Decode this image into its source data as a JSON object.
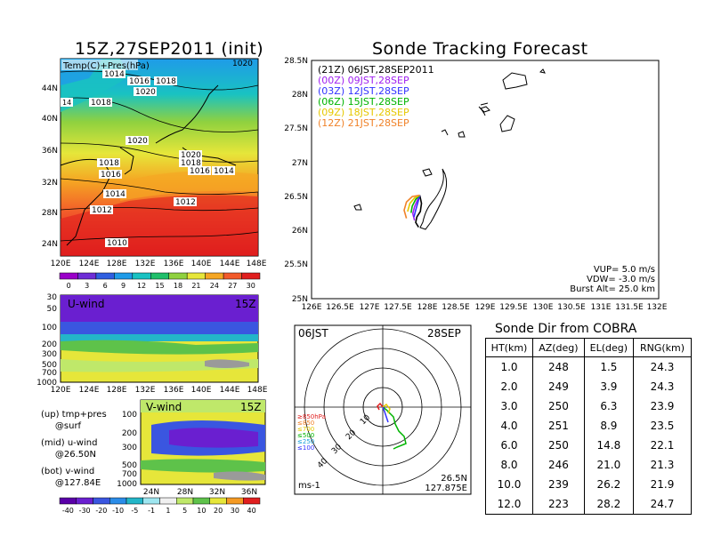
{
  "maps": {
    "temp_title": "15Z,27SEP2011 (init)",
    "temp_label": "Temp(C)+Pres(hPa)",
    "temp_time": "1020",
    "lon_ticks": [
      "120E",
      "124E",
      "128E",
      "132E",
      "136E",
      "140E",
      "144E",
      "148E"
    ],
    "lat_ticks": [
      "44N",
      "40N",
      "36N",
      "32N",
      "28N",
      "24N"
    ],
    "isobars": [
      "1014",
      "1016",
      "1018",
      "1020",
      "1018",
      "1014",
      "1020",
      "1018",
      "1016",
      "1018",
      "1016",
      "1014",
      "1020",
      "1014",
      "1012",
      "1012",
      "1010"
    ],
    "temp_cbar": [
      "0",
      "3",
      "6",
      "9",
      "12",
      "15",
      "18",
      "21",
      "24",
      "27",
      "30"
    ],
    "temp_colors": [
      "#9a00c8",
      "#6e2dd6",
      "#2f5fe0",
      "#1f9be8",
      "#19c2c2",
      "#1fbf6a",
      "#8fd13f",
      "#e6e63a",
      "#f5a623",
      "#f25a2a",
      "#e01e1e"
    ],
    "u_label": "U-wind",
    "u_time": "15Z",
    "u_pres_ticks": [
      "30",
      "50",
      "100",
      "200",
      "300",
      "500",
      "700",
      "1000"
    ],
    "v_label": "V-wind",
    "v_time": "15Z",
    "v_pres_ticks": [
      "100",
      "200",
      "300",
      "500",
      "700",
      "1000"
    ],
    "v_lat_ticks": [
      "24N",
      "28N",
      "32N",
      "36N"
    ],
    "wind_cbar": [
      "-40",
      "-30",
      "-20",
      "-10",
      "-5",
      "-1",
      "1",
      "5",
      "10",
      "20",
      "30",
      "40"
    ],
    "wind_colors": [
      "#5a00a8",
      "#6a1fd0",
      "#3a56e0",
      "#2a8ce8",
      "#23b6c8",
      "#9ee6f0",
      "#f0f0f0",
      "#bfe86a",
      "#5ec24a",
      "#e6e63a",
      "#f59a23",
      "#e01e1e"
    ],
    "legend_notes": [
      "(up) tmp+pres\n     @surf",
      "(mid) u-wind\n     @26.50N",
      "(bot) v-wind\n     @127.84E"
    ]
  },
  "tracking": {
    "title": "Sonde Tracking Forecast",
    "lat_ticks": [
      "28.5N",
      "28N",
      "27.5N",
      "27N",
      "26.5N",
      "26N",
      "25.5N",
      "25N"
    ],
    "lon_ticks": [
      "126E",
      "126.5E",
      "127E",
      "127.5E",
      "128E",
      "128.5E",
      "129E",
      "129.5E",
      "130E",
      "130.5E",
      "131E",
      "131.5E",
      "132E"
    ],
    "items": [
      {
        "label": "(21Z) 06JST,28SEP2011",
        "color": "#000000"
      },
      {
        "label": "(00Z) 09JST,28SEP",
        "color": "#a020f0"
      },
      {
        "label": "(03Z) 12JST,28SEP",
        "color": "#3232ff"
      },
      {
        "label": "(06Z) 15JST,28SEP",
        "color": "#00b400"
      },
      {
        "label": "(09Z) 18JST,28SEP",
        "color": "#e6c800"
      },
      {
        "label": "(12Z) 21JST,28SEP",
        "color": "#f08228"
      }
    ],
    "vup": "VUP= 5.0 m/s",
    "vdw": "VDW= -3.0 m/s",
    "burst": "Burst Alt= 25.0 km"
  },
  "polar": {
    "time": "06JST",
    "date": "28SEP",
    "ring_labels": [
      "10",
      "20",
      "30",
      "40"
    ],
    "heights": [
      {
        "label": "≥850hPa",
        "color": "#e01e1e"
      },
      {
        "label": "≤850",
        "color": "#f08228"
      },
      {
        "label": "≤700",
        "color": "#e6c800"
      },
      {
        "label": "≤500",
        "color": "#00b400"
      },
      {
        "label": "≤250",
        "color": "#19a0dc"
      },
      {
        "label": "≤100",
        "color": "#3232ff"
      }
    ],
    "unit": "ms-1",
    "lat": "26.5N",
    "lon": "127.875E"
  },
  "table": {
    "title": "Sonde Dir from COBRA",
    "headers": [
      "HT(km)",
      "AZ(deg)",
      "EL(deg)",
      "RNG(km)"
    ],
    "rows": [
      [
        "1.0",
        "248",
        "1.5",
        "24.3"
      ],
      [
        "2.0",
        "249",
        "3.9",
        "24.3"
      ],
      [
        "3.0",
        "250",
        "6.3",
        "23.9"
      ],
      [
        "4.0",
        "251",
        "8.9",
        "23.5"
      ],
      [
        "6.0",
        "250",
        "14.8",
        "22.1"
      ],
      [
        "8.0",
        "246",
        "21.0",
        "21.3"
      ],
      [
        "10.0",
        "239",
        "26.2",
        "21.9"
      ],
      [
        "12.0",
        "223",
        "28.2",
        "24.7"
      ]
    ]
  },
  "chart_data": [
    {
      "type": "table",
      "title": "Sonde Dir from COBRA",
      "columns": [
        "HT(km)",
        "AZ(deg)",
        "EL(deg)",
        "RNG(km)"
      ],
      "rows": [
        [
          1.0,
          248,
          1.5,
          24.3
        ],
        [
          2.0,
          249,
          3.9,
          24.3
        ],
        [
          3.0,
          250,
          6.3,
          23.9
        ],
        [
          4.0,
          251,
          8.9,
          23.5
        ],
        [
          6.0,
          250,
          14.8,
          22.1
        ],
        [
          8.0,
          246,
          21.0,
          21.3
        ],
        [
          10.0,
          239,
          26.2,
          21.9
        ],
        [
          12.0,
          223,
          28.2,
          24.7
        ]
      ]
    },
    {
      "type": "line",
      "title": "Sonde Tracking Forecast",
      "xlim": [
        126,
        132
      ],
      "ylim": [
        25,
        28.5
      ],
      "series": [
        {
          "name": "(21Z) 06JST,28SEP2011",
          "color": "#000000",
          "x": [
            127.87,
            127.9,
            127.88,
            127.82,
            127.8,
            127.85
          ],
          "y": [
            26.52,
            26.4,
            26.28,
            26.2,
            26.12,
            26.05
          ]
        },
        {
          "name": "(00Z) 09JST,28SEP",
          "color": "#a020f0",
          "x": [
            127.87,
            127.83,
            127.78,
            127.75,
            127.78
          ],
          "y": [
            26.52,
            26.45,
            26.35,
            26.25,
            26.15
          ]
        },
        {
          "name": "(03Z) 12JST,28SEP",
          "color": "#3232ff",
          "x": [
            127.87,
            127.84,
            127.8,
            127.77
          ],
          "y": [
            26.52,
            26.42,
            26.3,
            26.2
          ]
        },
        {
          "name": "(06Z) 15JST,28SEP",
          "color": "#00b400",
          "x": [
            127.87,
            127.8,
            127.74,
            127.72
          ],
          "y": [
            26.52,
            26.46,
            26.36,
            26.26
          ]
        },
        {
          "name": "(09Z) 18JST,28SEP",
          "color": "#e6c800",
          "x": [
            127.87,
            127.78,
            127.7,
            127.66
          ],
          "y": [
            26.52,
            26.48,
            26.4,
            26.28
          ]
        },
        {
          "name": "(12Z) 21JST,28SEP",
          "color": "#f08228",
          "x": [
            127.87,
            127.74,
            127.64,
            127.6,
            127.64
          ],
          "y": [
            26.52,
            26.5,
            26.42,
            26.3,
            26.18
          ]
        }
      ]
    }
  ]
}
